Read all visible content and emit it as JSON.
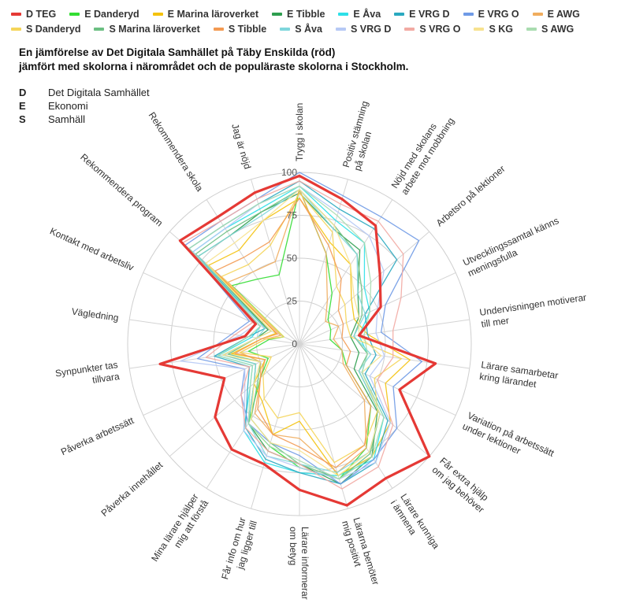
{
  "legend_rows": [
    [
      {
        "label": "D TEG",
        "color": "#e53935"
      },
      {
        "label": "E Danderyd",
        "color": "#33dd33"
      },
      {
        "label": "E Marina läroverket",
        "color": "#f4c20d"
      },
      {
        "label": "E Tibble",
        "color": "#2e9e4f"
      },
      {
        "label": "E Åva",
        "color": "#2de0e8"
      },
      {
        "label": "E VRG D",
        "color": "#2aa9c0"
      },
      {
        "label": "E VRG O",
        "color": "#6f9ae6"
      },
      {
        "label": "E AWG",
        "color": "#f0ad5e"
      }
    ],
    [
      {
        "label": "S Danderyd",
        "color": "#f5d55a"
      },
      {
        "label": "S Marina läroverket",
        "color": "#6cbf82"
      },
      {
        "label": "S Tibble",
        "color": "#f39a52"
      },
      {
        "label": "S Åva",
        "color": "#7fd6dc"
      },
      {
        "label": "S VRG D",
        "color": "#b6c9f5"
      },
      {
        "label": "S VRG O",
        "color": "#f2aaa3"
      },
      {
        "label": "S KG",
        "color": "#f7e28f"
      },
      {
        "label": "S AWG",
        "color": "#a9dcb0"
      }
    ]
  ],
  "title_lines": [
    "En jämförelse av Det Digitala Samhället på Täby Enskilda (röd)",
    "jämfört med skolorna i närområdet och de populäraste skolorna i Stockholm."
  ],
  "abbreviations": [
    {
      "key": "D",
      "text": "Det Digitala Samhället"
    },
    {
      "key": "E",
      "text": "Ekonomi"
    },
    {
      "key": "S",
      "text": "Samhäll"
    }
  ],
  "chart_data": {
    "type": "radar",
    "axis_range": [
      0,
      100
    ],
    "radial_ticks": [
      0,
      25,
      50,
      75,
      100
    ],
    "categories": [
      "Trygg i skolan",
      "Positiv stämning på skolan",
      "Nöjd med skolans arbete mot mobbning",
      "Arbetsro på lektioner",
      "Utvecklingssamtal känns meningsfulla",
      "Undervisningen motiverar till mer",
      "Lärare samarbetar kring lärandet",
      "Variation på arbetssätt under lektioner",
      "Får extra hjälp om jag behöver",
      "Lärare kunniga i ämnena",
      "Lärarna bemöter mig positivt",
      "Lärare informerar om betyg",
      "Får info om hur jag ligger till",
      "Mina lärare hjälper mig att förstå",
      "Påverka innehållet",
      "Påverka arbetssätt",
      "Synpunkter tas tillvara",
      "Vägledning",
      "Kontakt med arbetsliv",
      "Rekommendera program",
      "Rekommendera skola",
      "Jag är nöjd"
    ],
    "series": [
      {
        "name": "D TEG",
        "color": "#e53935",
        "values": [
          98,
          88,
          82,
          62,
          52,
          35,
          80,
          64,
          100,
          93,
          98,
          85,
          73,
          73,
          65,
          48,
          82,
          32,
          28,
          92,
          88,
          92
        ]
      },
      {
        "name": "E Danderyd",
        "color": "#33dd33",
        "values": [
          90,
          55,
          35,
          22,
          20,
          18,
          25,
          30,
          55,
          72,
          82,
          72,
          62,
          55,
          30,
          20,
          30,
          18,
          10,
          52,
          45,
          42
        ]
      },
      {
        "name": "E Marina läroverket",
        "color": "#f4c20d",
        "values": [
          85,
          62,
          55,
          40,
          35,
          40,
          65,
          55,
          70,
          78,
          80,
          45,
          55,
          40,
          35,
          22,
          40,
          22,
          15,
          70,
          65,
          75
        ]
      },
      {
        "name": "E Tibble",
        "color": "#2e9e4f",
        "values": [
          88,
          70,
          65,
          45,
          38,
          30,
          35,
          35,
          60,
          78,
          85,
          70,
          65,
          55,
          35,
          28,
          45,
          25,
          20,
          78,
          75,
          80
        ]
      },
      {
        "name": "E Åva",
        "color": "#2de0e8",
        "values": [
          92,
          75,
          70,
          50,
          45,
          35,
          40,
          40,
          65,
          80,
          80,
          75,
          72,
          60,
          38,
          30,
          48,
          28,
          25,
          82,
          80,
          82
        ]
      },
      {
        "name": "E VRG D",
        "color": "#2aa9c0",
        "values": [
          95,
          82,
          80,
          75,
          42,
          40,
          45,
          42,
          68,
          82,
          85,
          75,
          70,
          58,
          40,
          32,
          50,
          30,
          22,
          85,
          82,
          85
        ]
      },
      {
        "name": "E VRG O",
        "color": "#6f9ae6",
        "values": [
          100,
          90,
          88,
          92,
          55,
          48,
          72,
          60,
          75,
          80,
          85,
          65,
          60,
          55,
          45,
          35,
          60,
          40,
          32,
          88,
          85,
          88
        ]
      },
      {
        "name": "E AWG",
        "color": "#f0ad5e",
        "values": [
          90,
          55,
          30,
          20,
          25,
          20,
          25,
          28,
          50,
          72,
          78,
          55,
          55,
          48,
          30,
          25,
          35,
          20,
          12,
          55,
          50,
          50
        ]
      },
      {
        "name": "S Danderyd",
        "color": "#f5d55a",
        "values": [
          88,
          68,
          40,
          35,
          30,
          30,
          60,
          48,
          60,
          70,
          72,
          40,
          45,
          38,
          28,
          18,
          35,
          20,
          10,
          60,
          55,
          60
        ]
      },
      {
        "name": "S Marina läroverket",
        "color": "#6cbf82",
        "values": [
          90,
          72,
          62,
          48,
          40,
          32,
          40,
          38,
          62,
          76,
          82,
          70,
          60,
          52,
          32,
          25,
          42,
          25,
          18,
          80,
          78,
          80
        ]
      },
      {
        "name": "S Tibble",
        "color": "#f39a52",
        "values": [
          85,
          60,
          45,
          30,
          28,
          25,
          30,
          30,
          55,
          70,
          75,
          60,
          55,
          45,
          30,
          22,
          38,
          22,
          14,
          65,
          60,
          62
        ]
      },
      {
        "name": "S Åva",
        "color": "#7fd6dc",
        "values": [
          90,
          70,
          62,
          45,
          42,
          32,
          42,
          38,
          62,
          75,
          78,
          70,
          68,
          55,
          35,
          28,
          45,
          25,
          22,
          78,
          75,
          78
        ]
      },
      {
        "name": "S VRG D",
        "color": "#b6c9f5",
        "values": [
          92,
          80,
          75,
          65,
          50,
          45,
          50,
          45,
          70,
          82,
          82,
          72,
          68,
          60,
          42,
          35,
          70,
          35,
          28,
          82,
          80,
          85
        ]
      },
      {
        "name": "S VRG O",
        "color": "#f2aaa3",
        "values": [
          95,
          85,
          85,
          80,
          65,
          55,
          55,
          50,
          72,
          85,
          88,
          70,
          65,
          58,
          45,
          32,
          55,
          38,
          30,
          90,
          85,
          88
        ]
      },
      {
        "name": "S KG",
        "color": "#f7e28f",
        "values": [
          90,
          72,
          55,
          42,
          38,
          35,
          48,
          40,
          62,
          75,
          80,
          62,
          60,
          52,
          35,
          25,
          45,
          25,
          18,
          72,
          70,
          75
        ]
      },
      {
        "name": "S AWG",
        "color": "#a9dcb0",
        "values": [
          92,
          78,
          70,
          55,
          45,
          38,
          40,
          40,
          65,
          78,
          82,
          68,
          62,
          55,
          38,
          30,
          48,
          30,
          25,
          85,
          82,
          85
        ]
      }
    ]
  }
}
